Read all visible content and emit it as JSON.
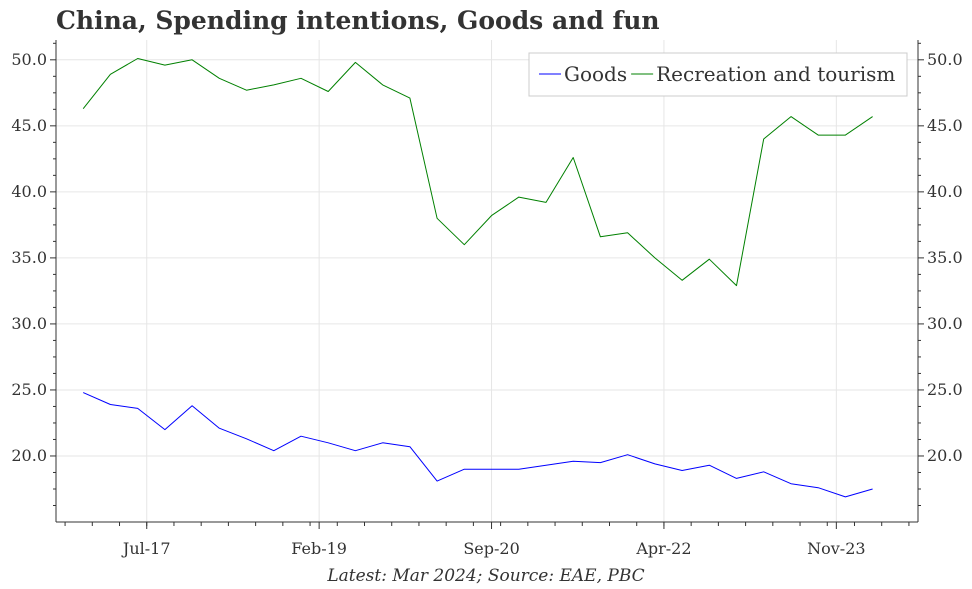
{
  "title": "China, Spending intentions, Goods and fun",
  "source": "Latest: Mar 2024; Source: EAE, PBC",
  "colors": {
    "goods": "#0000ff",
    "recreation": "#008000",
    "grid": "#e6e6e6",
    "axis": "#333333"
  },
  "chart_data": {
    "type": "line",
    "title": "China, Spending intentions, Goods and fun",
    "xlabel": "",
    "ylabel": "",
    "ylim": [
      15.0,
      51.5
    ],
    "yticks": [
      20.0,
      25.0,
      30.0,
      35.0,
      40.0,
      45.0,
      50.0
    ],
    "ytick_labels": [
      "20.0",
      "25.0",
      "30.0",
      "35.0",
      "40.0",
      "45.0",
      "50.0"
    ],
    "xlim": [
      "2016-09",
      "2024-08"
    ],
    "xticks": [
      "2017-07",
      "2019-02",
      "2020-09",
      "2022-04",
      "2023-11"
    ],
    "xtick_labels": [
      "Jul-17",
      "Feb-19",
      "Sep-20",
      "Apr-22",
      "Nov-23"
    ],
    "legend_position": "top-right",
    "grid": true,
    "x": [
      "2016-12",
      "2017-03",
      "2017-06",
      "2017-09",
      "2017-12",
      "2018-03",
      "2018-06",
      "2018-09",
      "2018-12",
      "2019-03",
      "2019-06",
      "2019-09",
      "2019-12",
      "2020-03",
      "2020-06",
      "2020-09",
      "2020-12",
      "2021-03",
      "2021-06",
      "2021-09",
      "2021-12",
      "2022-03",
      "2022-06",
      "2022-09",
      "2022-12",
      "2023-03",
      "2023-06",
      "2023-09",
      "2023-12",
      "2024-03"
    ],
    "series": [
      {
        "name": "Goods",
        "color": "#0000ff",
        "values": [
          24.8,
          23.9,
          23.6,
          22.0,
          23.8,
          22.1,
          21.3,
          20.4,
          21.5,
          21.0,
          20.4,
          21.0,
          20.7,
          18.1,
          19.0,
          19.0,
          19.0,
          19.3,
          19.6,
          19.5,
          20.1,
          19.4,
          18.9,
          19.3,
          18.3,
          18.8,
          17.9,
          17.6,
          16.9,
          17.5
        ]
      },
      {
        "name": "Recreation and tourism",
        "color": "#008000",
        "values": [
          46.3,
          48.9,
          50.1,
          49.6,
          50.0,
          48.6,
          47.7,
          48.1,
          48.6,
          47.6,
          49.8,
          48.1,
          47.1,
          38.0,
          36.0,
          38.2,
          39.6,
          39.2,
          42.6,
          36.6,
          36.9,
          35.0,
          33.3,
          34.9,
          32.9,
          44.0,
          45.7,
          44.3,
          44.3,
          45.7
        ]
      }
    ]
  }
}
